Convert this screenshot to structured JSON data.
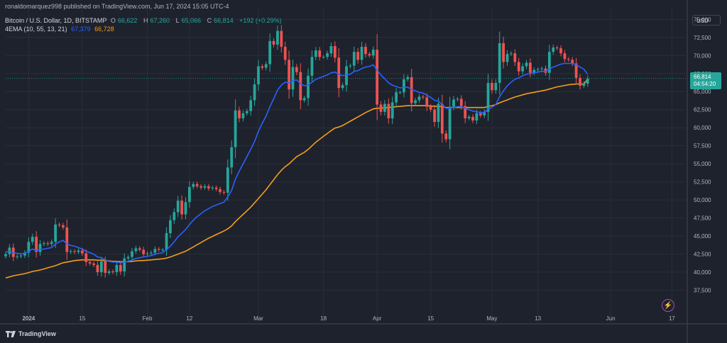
{
  "header": {
    "publisher": "ronaldomarquez998 published on TradingView.com, Jun 17, 2024 15:05 UTC-4",
    "symbol": "Bitcoin / U.S. Dollar, 1D, BITSTAMP",
    "ohlc": {
      "o_label": "O",
      "o": "66,622",
      "h_label": "H",
      "h": "67,260",
      "l_label": "L",
      "l": "65,066",
      "c_label": "C",
      "c": "66,814",
      "change": "+192 (+0.29%)"
    },
    "ema_label": "4EMA (10, 55, 13, 21)",
    "ema_fast": "67,379",
    "ema_slow": "66,728"
  },
  "currency": "USD",
  "price_badge": {
    "price": "66,814",
    "countdown": "04:54:20"
  },
  "footer": {
    "brand": "TradingView"
  },
  "icons": {
    "lightning": "lightning-icon",
    "logo": "tradingview-logo-icon"
  },
  "colors": {
    "bg": "#1e222d",
    "grid": "#2a2e39",
    "up": "#26a69a",
    "down": "#ef5350",
    "ema_fast": "#2962ff",
    "ema_slow": "#f59d1b",
    "text": "#b2b5be"
  },
  "chart_data": {
    "type": "candlestick",
    "x_axis": {
      "labels": [
        {
          "t": "2024",
          "d": "2024-01-01"
        },
        {
          "t": "15",
          "d": "2024-01-15"
        },
        {
          "t": "Feb",
          "d": "2024-02-01"
        },
        {
          "t": "12",
          "d": "2024-02-12"
        },
        {
          "t": "Mar",
          "d": "2024-03-01"
        },
        {
          "t": "18",
          "d": "2024-03-18"
        },
        {
          "t": "Apr",
          "d": "2024-04-01"
        },
        {
          "t": "15",
          "d": "2024-04-15"
        },
        {
          "t": "May",
          "d": "2024-05-01"
        },
        {
          "t": "13",
          "d": "2024-05-13"
        },
        {
          "t": "Jun",
          "d": "2024-06-01"
        },
        {
          "t": "17",
          "d": "2024-06-17"
        }
      ]
    },
    "x_range": [
      "2023-12-26",
      "2024-06-21"
    ],
    "y_axis": {
      "ticks": [
        37500,
        40000,
        42500,
        45000,
        47500,
        50000,
        52500,
        55000,
        57500,
        60000,
        62500,
        65000,
        67500,
        70000,
        72500,
        75000
      ],
      "labels": [
        "37,500",
        "40,000",
        "42,500",
        "45,000",
        "47,500",
        "50,000",
        "52,500",
        "55,000",
        "57,500",
        "60,000",
        "62,500",
        "65,000",
        "67,500",
        "70,000",
        "72,500",
        "75,000"
      ]
    },
    "y_range": [
      35000,
      76700
    ],
    "grid": true,
    "series": [
      {
        "name": "BTCUSD",
        "kind": "ohlc",
        "start": "2023-12-26",
        "close": [
          42500,
          43400,
          42100,
          42200,
          42300,
          42700,
          44200,
          44900,
          42800,
          43900,
          44000,
          43900,
          44200,
          46600,
          46500,
          46200,
          42800,
          42900,
          42800,
          43000,
          42600,
          41400,
          41200,
          41000,
          40000,
          41500,
          39900,
          40100,
          40000,
          41000,
          40100,
          41900,
          42100,
          42900,
          43300,
          43100,
          42500,
          42600,
          42700,
          43200,
          43100,
          43100,
          45400,
          47200,
          48300,
          49900,
          48000,
          49700,
          51800,
          52200,
          51900,
          51700,
          51900,
          51600,
          51700,
          51500,
          51100,
          51000,
          54500,
          57300,
          62400,
          61300,
          62000,
          62300,
          63800,
          66000,
          68500,
          68300,
          68800,
          72000,
          71500,
          73400,
          71200,
          69400,
          65300,
          68400,
          67700,
          63800,
          64100,
          67200,
          69800,
          70700,
          69800,
          69800,
          70300,
          71300,
          69700,
          65500,
          65900,
          68500,
          68600,
          70500,
          69400,
          71200,
          70200,
          70000,
          70800,
          63200,
          62200,
          63300,
          61300,
          63500,
          64900,
          64900,
          66700,
          67000,
          63400,
          63800,
          64300,
          64200,
          62900,
          62500,
          60800,
          63300,
          59200,
          58400,
          62900,
          63900,
          64000,
          63000,
          61300,
          61500,
          61000,
          62000,
          61700,
          62200,
          66200,
          65200,
          66200,
          71700,
          69100,
          70200,
          70300,
          69100,
          67800,
          68500,
          69000,
          67600,
          68000,
          68100,
          68200,
          67600,
          70500,
          71100,
          71000,
          70300,
          69500,
          69400,
          68900,
          66900,
          65800,
          66100,
          66814
        ]
      },
      {
        "name": "EMA fast",
        "kind": "line",
        "start": "2023-12-26",
        "values": [
          42800,
          42900,
          42700,
          42600,
          42550,
          42600,
          42900,
          43200,
          43000,
          43100,
          43200,
          43300,
          43400,
          43900,
          44200,
          44400,
          43900,
          43700,
          43600,
          43400,
          43200,
          42900,
          42700,
          42500,
          42100,
          42000,
          41700,
          41500,
          41400,
          41400,
          41300,
          41400,
          41500,
          41700,
          41900,
          42000,
          42100,
          42200,
          42300,
          42500,
          42600,
          42700,
          43100,
          43600,
          44200,
          44900,
          45400,
          45900,
          46600,
          47200,
          47700,
          48100,
          48500,
          48800,
          49100,
          49300,
          49500,
          49700,
          50400,
          51300,
          52900,
          54000,
          55000,
          56000,
          57000,
          58100,
          59500,
          60600,
          61600,
          62900,
          64000,
          65200,
          65900,
          66300,
          66200,
          66500,
          66600,
          66100,
          65800,
          65900,
          66300,
          66700,
          66900,
          67100,
          67300,
          67600,
          67700,
          67400,
          67200,
          67300,
          67400,
          67800,
          67900,
          68200,
          68400,
          68500,
          68700,
          68000,
          67300,
          66800,
          66200,
          65900,
          65700,
          65500,
          65600,
          65600,
          65300,
          65100,
          64900,
          64800,
          64500,
          64200,
          63800,
          63700,
          63200,
          62700,
          62700,
          62800,
          62900,
          62900,
          62700,
          62500,
          62300,
          62200,
          62100,
          62100,
          62600,
          62800,
          63200,
          64300,
          65100,
          65800,
          66300,
          66700,
          66900,
          67200,
          67400,
          67500,
          67600,
          67700,
          67800,
          67800,
          68100,
          68400,
          68600,
          68800,
          68900,
          68900,
          68900,
          68700,
          68400,
          68100,
          67400
        ]
      },
      {
        "name": "EMA slow",
        "kind": "line",
        "start": "2023-12-26",
        "values": [
          39200,
          39350,
          39500,
          39600,
          39700,
          39800,
          39950,
          40100,
          40200,
          40300,
          40450,
          40600,
          40750,
          40900,
          41100,
          41300,
          41400,
          41500,
          41600,
          41650,
          41700,
          41700,
          41700,
          41700,
          41650,
          41650,
          41600,
          41550,
          41500,
          41500,
          41450,
          41450,
          41450,
          41500,
          41550,
          41600,
          41600,
          41650,
          41700,
          41750,
          41800,
          41850,
          41950,
          42100,
          42300,
          42500,
          42700,
          42900,
          43200,
          43500,
          43800,
          44100,
          44400,
          44700,
          44950,
          45200,
          45450,
          45700,
          46000,
          46400,
          47000,
          47500,
          48000,
          48500,
          49000,
          49600,
          50200,
          50800,
          51400,
          52100,
          52800,
          53500,
          54100,
          54600,
          55000,
          55500,
          56000,
          56300,
          56600,
          57000,
          57500,
          58000,
          58400,
          58800,
          59200,
          59600,
          59950,
          60100,
          60300,
          60600,
          60900,
          61200,
          61500,
          61800,
          62100,
          62350,
          62600,
          62700,
          62700,
          62750,
          62800,
          62850,
          62900,
          62950,
          63000,
          63050,
          63050,
          63050,
          63050,
          63050,
          63050,
          63000,
          62950,
          62950,
          62900,
          62800,
          62800,
          62800,
          62800,
          62800,
          62800,
          62800,
          62800,
          62800,
          62800,
          62800,
          62950,
          63050,
          63200,
          63450,
          63650,
          63850,
          64050,
          64250,
          64400,
          64550,
          64700,
          64800,
          64900,
          65000,
          65100,
          65200,
          65350,
          65500,
          65650,
          65750,
          65850,
          65950,
          66000,
          66050,
          66050,
          66050,
          66728
        ]
      }
    ],
    "last_price": 66814
  }
}
